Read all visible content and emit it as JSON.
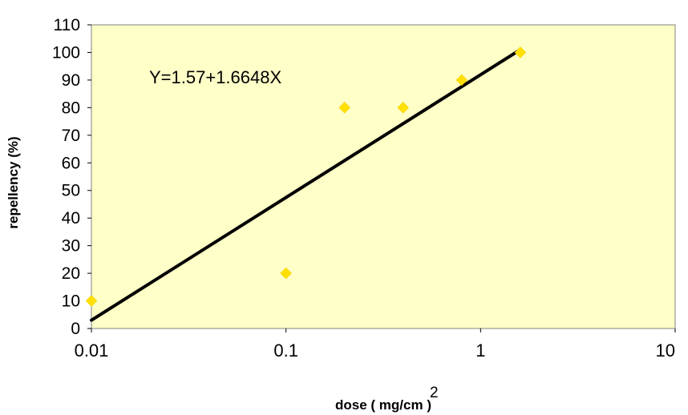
{
  "chart_data": {
    "type": "scatter",
    "title": "",
    "xlabel": "dose ( mg/cm )",
    "xlabel_superscript": "2",
    "ylabel": "repellency (%)",
    "x_scale": "log",
    "xlim": [
      0.01,
      10
    ],
    "ylim": [
      0,
      110
    ],
    "x_ticks": [
      0.01,
      0.1,
      1,
      10
    ],
    "x_tick_labels": [
      "0.01",
      "0.1",
      "1",
      "10"
    ],
    "y_ticks": [
      0,
      10,
      20,
      30,
      40,
      50,
      60,
      70,
      80,
      90,
      100,
      110
    ],
    "y_tick_labels": [
      "0",
      "10",
      "20",
      "30",
      "40",
      "50",
      "60",
      "70",
      "80",
      "90",
      "100",
      "110"
    ],
    "grid": false,
    "legend": "none",
    "plot_background": "#FFFFC8",
    "marker_color": "#FFE000",
    "line_color": "#000000",
    "points": [
      {
        "x": 0.01,
        "y": 10
      },
      {
        "x": 0.1,
        "y": 20
      },
      {
        "x": 0.2,
        "y": 80
      },
      {
        "x": 0.4,
        "y": 80
      },
      {
        "x": 0.8,
        "y": 90
      },
      {
        "x": 1.6,
        "y": 100
      }
    ],
    "trendline": {
      "x_start": 0.01,
      "x_end": 1.6,
      "y_start": 3,
      "y_end": 101
    },
    "annotation": "Y=1.57+1.6648X"
  }
}
